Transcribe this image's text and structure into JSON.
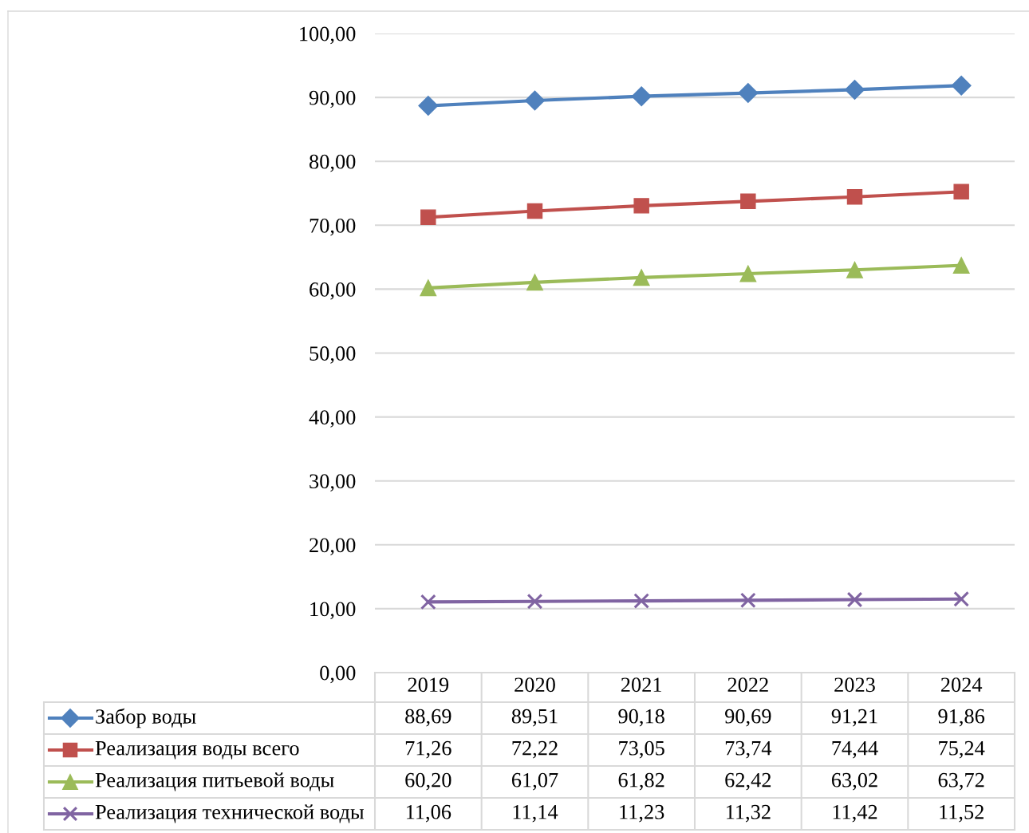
{
  "chart_data": {
    "type": "line",
    "categories": [
      "2019",
      "2020",
      "2021",
      "2022",
      "2023",
      "2024"
    ],
    "series": [
      {
        "name": "Забор воды",
        "color": "#4f81bd",
        "marker": "diamond",
        "values": [
          88.69,
          89.51,
          90.18,
          90.69,
          91.21,
          91.86
        ],
        "value_labels": [
          "88,69",
          "89,51",
          "90,18",
          "90,69",
          "91,21",
          "91,86"
        ]
      },
      {
        "name": "Реализация воды всего",
        "color": "#c0504d",
        "marker": "square",
        "values": [
          71.26,
          72.22,
          73.05,
          73.74,
          74.44,
          75.24
        ],
        "value_labels": [
          "71,26",
          "72,22",
          "73,05",
          "73,74",
          "74,44",
          "75,24"
        ]
      },
      {
        "name": "Реализация питьевой воды",
        "color": "#9bbb59",
        "marker": "triangle",
        "values": [
          60.2,
          61.07,
          61.82,
          62.42,
          63.02,
          63.72
        ],
        "value_labels": [
          "60,20",
          "61,07",
          "61,82",
          "62,42",
          "63,02",
          "63,72"
        ]
      },
      {
        "name": "Реализация технической воды",
        "color": "#8064a2",
        "marker": "cross",
        "values": [
          11.06,
          11.14,
          11.23,
          11.32,
          11.42,
          11.52
        ],
        "value_labels": [
          "11,06",
          "11,14",
          "11,23",
          "11,32",
          "11,42",
          "11,52"
        ]
      }
    ],
    "ylim": [
      0,
      100
    ],
    "yticks": [
      {
        "value": 0,
        "label": "0,00"
      },
      {
        "value": 10,
        "label": "10,00"
      },
      {
        "value": 20,
        "label": "20,00"
      },
      {
        "value": 30,
        "label": "30,00"
      },
      {
        "value": 40,
        "label": "40,00"
      },
      {
        "value": 50,
        "label": "50,00"
      },
      {
        "value": 60,
        "label": "60,00"
      },
      {
        "value": 70,
        "label": "70,00"
      },
      {
        "value": 80,
        "label": "80,00"
      },
      {
        "value": 90,
        "label": "90,00"
      },
      {
        "value": 100,
        "label": "100,00"
      }
    ],
    "grid": "y",
    "legend": "bottom left",
    "line_style": "solid"
  }
}
